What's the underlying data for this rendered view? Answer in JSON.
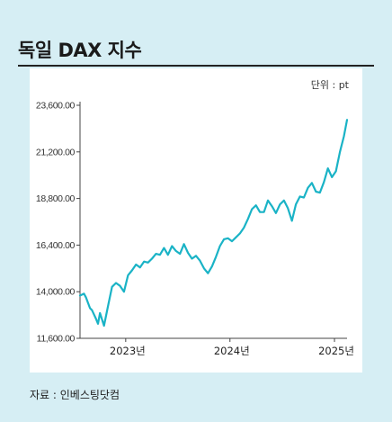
{
  "header": {
    "title": "독일 DAX 지수",
    "unit": "단위 : pt",
    "source": "자료 : 인베스팅닷컴"
  },
  "colors": {
    "background": "#d6eef4",
    "panel": "#ffffff",
    "line": "#1ab3c6",
    "axis": "#444444"
  },
  "chart_data": {
    "type": "line",
    "title": "독일 DAX 지수",
    "xlabel": "",
    "ylabel": "",
    "ylim": [
      11600,
      23600
    ],
    "xlim": [
      "2022-07-25",
      "2025-02-14"
    ],
    "yticks": [
      23600,
      21200,
      18800,
      16400,
      14000,
      11600
    ],
    "yticklabels": [
      "23,600.00",
      "21,200.00",
      "18,800.00",
      "16,400.00",
      "14,000.00",
      "11,600.00"
    ],
    "xticks": [
      "2023-01-01",
      "2024-01-01",
      "2025-01-01"
    ],
    "xticklabels": [
      "2023년",
      "2024년",
      "2025년"
    ],
    "grid": false,
    "legend": "none",
    "series": [
      {
        "x": [
          "2022-07-25",
          "2022-08-08",
          "2022-08-15",
          "2022-08-29",
          "2022-09-05",
          "2022-09-19",
          "2022-09-26",
          "2022-10-03",
          "2022-10-17",
          "2022-10-31",
          "2022-11-14",
          "2022-11-28",
          "2022-12-12",
          "2022-12-26",
          "2023-01-09",
          "2023-01-23",
          "2023-02-06",
          "2023-02-20",
          "2023-03-06",
          "2023-03-20",
          "2023-04-03",
          "2023-04-17",
          "2023-05-01",
          "2023-05-15",
          "2023-05-29",
          "2023-06-12",
          "2023-06-26",
          "2023-07-10",
          "2023-07-24",
          "2023-08-07",
          "2023-08-21",
          "2023-09-04",
          "2023-09-18",
          "2023-10-02",
          "2023-10-16",
          "2023-10-30",
          "2023-11-13",
          "2023-11-27",
          "2023-12-11",
          "2023-12-25",
          "2024-01-08",
          "2024-01-22",
          "2024-02-05",
          "2024-02-19",
          "2024-03-04",
          "2024-03-18",
          "2024-04-01",
          "2024-04-15",
          "2024-04-29",
          "2024-05-13",
          "2024-05-27",
          "2024-06-10",
          "2024-06-24",
          "2024-07-08",
          "2024-07-22",
          "2024-08-05",
          "2024-08-19",
          "2024-09-02",
          "2024-09-16",
          "2024-09-30",
          "2024-10-14",
          "2024-10-28",
          "2024-11-11",
          "2024-11-25",
          "2024-12-09",
          "2024-12-23",
          "2025-01-06",
          "2025-01-20",
          "2025-02-03",
          "2025-02-14"
        ],
        "y": [
          13800,
          13900,
          13700,
          13150,
          13050,
          12600,
          12350,
          12900,
          12250,
          13250,
          14250,
          14450,
          14300,
          14000,
          14850,
          15100,
          15400,
          15250,
          15550,
          15500,
          15700,
          15950,
          15900,
          16250,
          15900,
          16350,
          16100,
          15950,
          16450,
          16000,
          15700,
          15850,
          15600,
          15200,
          14950,
          15300,
          15800,
          16350,
          16700,
          16750,
          16600,
          16800,
          17000,
          17300,
          17750,
          18250,
          18450,
          18100,
          18100,
          18700,
          18400,
          18050,
          18500,
          18700,
          18300,
          17650,
          18500,
          18900,
          18850,
          19350,
          19600,
          19150,
          19100,
          19650,
          20350,
          19900,
          20200,
          21200,
          22000,
          22850
        ]
      }
    ]
  }
}
